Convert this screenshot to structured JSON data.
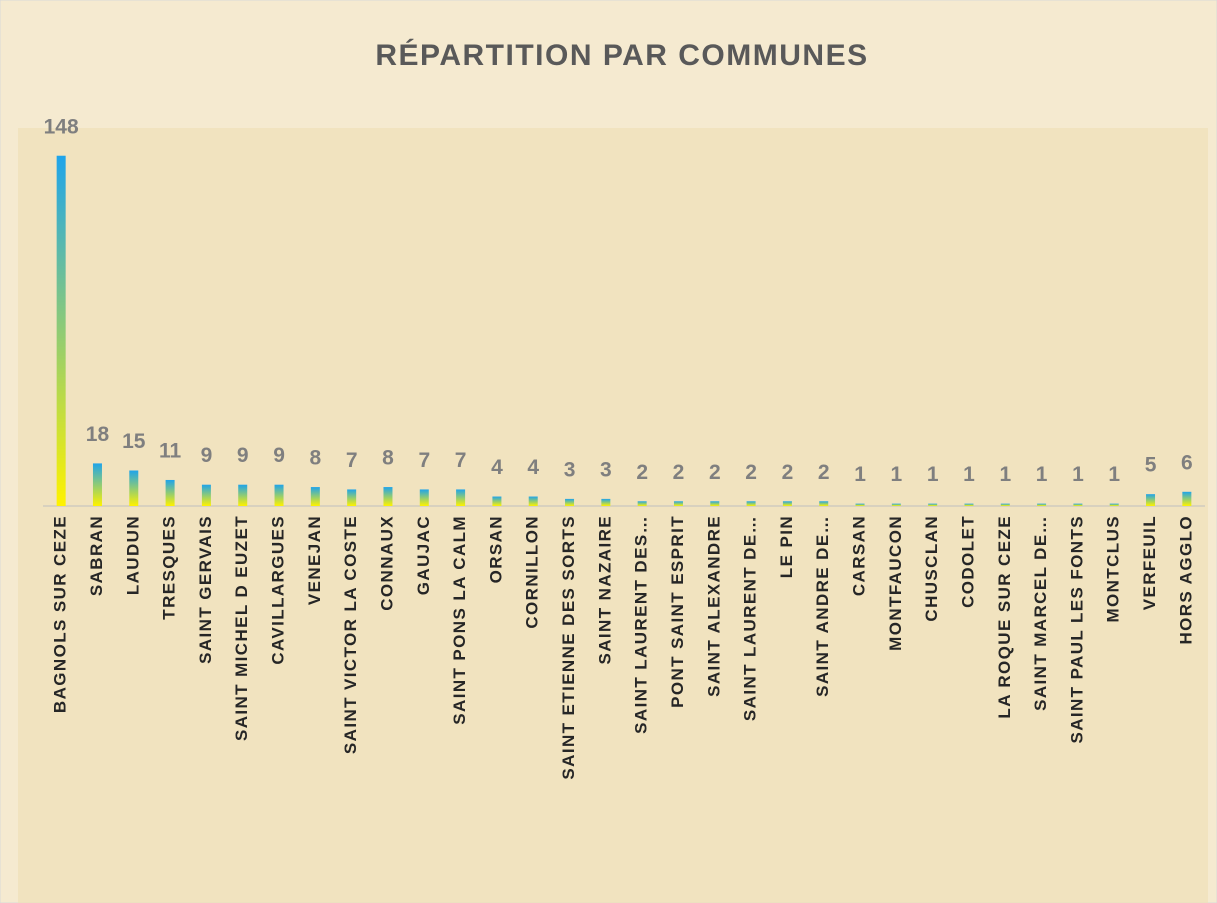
{
  "chart_data": {
    "type": "bar",
    "title": "RÉPARTITION PAR COMMUNES",
    "categories": [
      "BAGNOLS SUR CEZE",
      "SABRAN",
      "LAUDUN",
      "TRESQUES",
      "SAINT GERVAIS",
      "SAINT MICHEL D EUZET",
      "CAVILLARGUES",
      "VENEJAN",
      "SAINT VICTOR LA COSTE",
      "CONNAUX",
      "GAUJAC",
      "SAINT PONS LA CALM",
      "ORSAN",
      "CORNILLON",
      "SAINT ETIENNE DES SORTS",
      "SAINT NAZAIRE",
      "SAINT LAURENT DES…",
      "PONT SAINT ESPRIT",
      "SAINT ALEXANDRE",
      "SAINT LAURENT DE…",
      "LE PIN",
      "SAINT ANDRE DE…",
      "CARSAN",
      "MONTFAUCON",
      "CHUSCLAN",
      "CODOLET",
      "LA ROQUE SUR CEZE",
      "SAINT MARCEL DE…",
      "SAINT PAUL LES FONTS",
      "MONTCLUS",
      "VERFEUIL",
      "HORS AGGLO"
    ],
    "values": [
      148,
      18,
      15,
      11,
      9,
      9,
      9,
      8,
      7,
      8,
      7,
      7,
      4,
      4,
      3,
      3,
      2,
      2,
      2,
      2,
      2,
      2,
      1,
      1,
      1,
      1,
      1,
      1,
      1,
      1,
      5,
      6
    ],
    "gradient": [
      "#1fa4ea",
      "#fff200"
    ],
    "ylim": [
      0,
      150
    ]
  }
}
